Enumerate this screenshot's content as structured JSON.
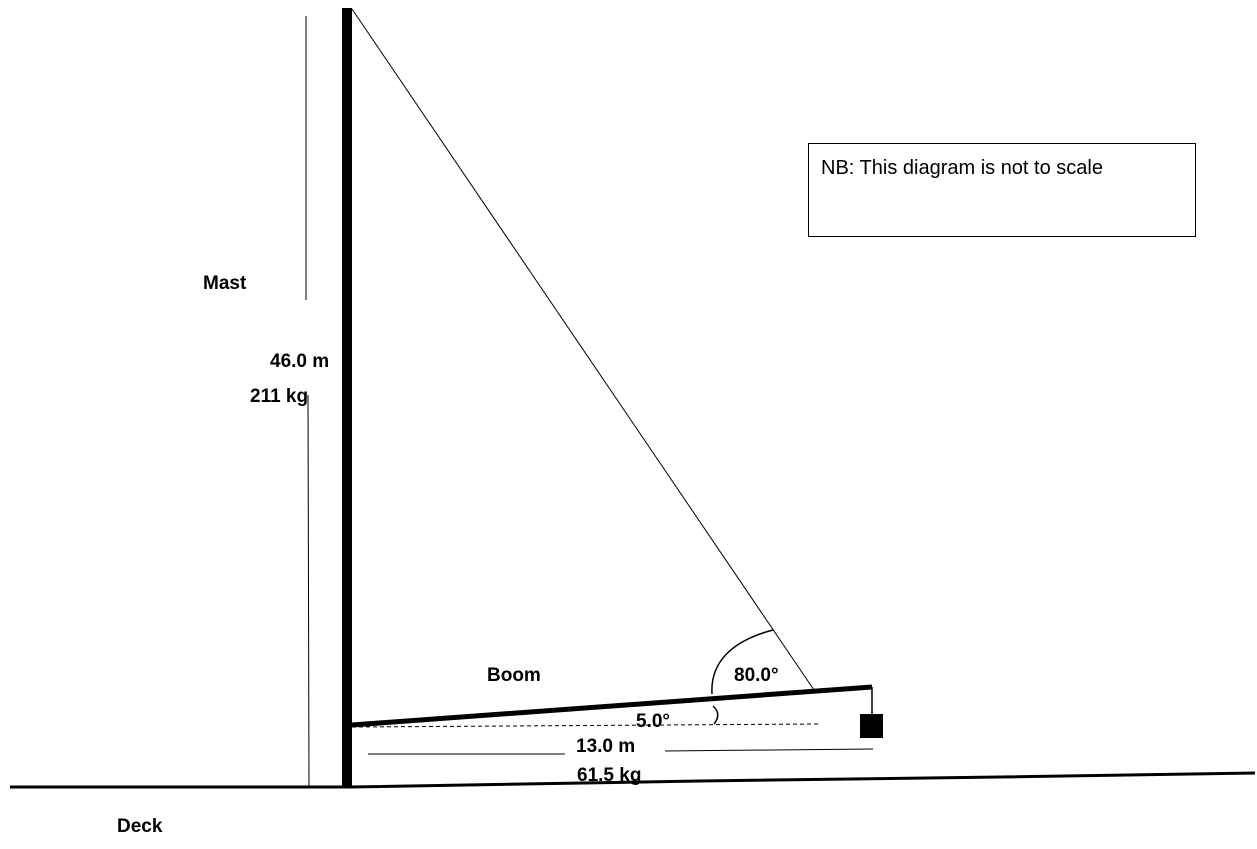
{
  "labels": {
    "mast": "Mast",
    "mast_length": "46.0 m",
    "mast_mass": "211 kg",
    "boom": "Boom",
    "cable_angle": "80.0°",
    "boom_angle": "5.0°",
    "boom_length": "13.0 m",
    "boom_mass": "61.5 kg",
    "deck": "Deck"
  },
  "note": {
    "text": "NB: This diagram is not to scale"
  },
  "colors": {
    "line": "#000000",
    "background": "#ffffff"
  }
}
